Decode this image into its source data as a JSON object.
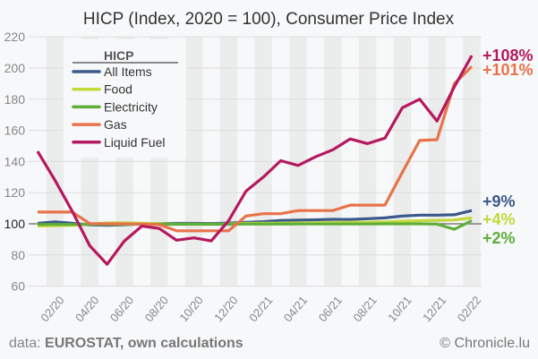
{
  "chart_data": {
    "type": "line",
    "title": "HICP (Index, 2020 = 100), Consumer Price Index",
    "xlabel": "",
    "ylabel": "",
    "ylim": [
      60,
      220
    ],
    "yticks": [
      60,
      80,
      100,
      120,
      140,
      160,
      180,
      200,
      220
    ],
    "grid": true,
    "x": [
      "01/20",
      "02/20",
      "03/20",
      "04/20",
      "05/20",
      "06/20",
      "07/20",
      "08/20",
      "09/20",
      "10/20",
      "11/20",
      "12/20",
      "01/21",
      "02/21",
      "03/21",
      "04/21",
      "05/21",
      "06/21",
      "07/21",
      "08/21",
      "09/21",
      "10/21",
      "11/21",
      "12/21",
      "01/22",
      "02/22"
    ],
    "xtick_labels": [
      "02/20",
      "04/20",
      "06/20",
      "08/20",
      "10/20",
      "12/20",
      "02/21",
      "04/21",
      "06/21",
      "08/21",
      "10/21",
      "12/21",
      "02/22"
    ],
    "legend_title": "HICP",
    "legend_position": "top-left",
    "series": [
      {
        "name": "All Items",
        "color": "#3b5a8a",
        "end_label": "+9%",
        "values": [
          100.3,
          101.2,
          100.4,
          99.3,
          99.0,
          99.4,
          100.0,
          100.2,
          100.3,
          100.3,
          100.2,
          100.5,
          101.0,
          101.4,
          102.2,
          102.4,
          102.6,
          102.9,
          102.8,
          103.3,
          103.8,
          105.0,
          105.6,
          105.6,
          105.8,
          108.5
        ]
      },
      {
        "name": "Food",
        "color": "#c3d93a",
        "end_label": "+4%",
        "values": [
          98.6,
          98.8,
          99.0,
          99.8,
          100.6,
          100.6,
          100.4,
          100.2,
          99.8,
          99.8,
          99.7,
          100.0,
          100.3,
          100.4,
          100.4,
          100.5,
          100.7,
          100.8,
          100.9,
          101.0,
          101.2,
          101.6,
          102.0,
          102.2,
          102.5,
          103.8
        ]
      },
      {
        "name": "Electricity",
        "color": "#5fae3a",
        "end_label": "+2%",
        "values": [
          99.6,
          99.6,
          99.6,
          99.6,
          99.6,
          99.7,
          99.7,
          99.7,
          99.7,
          99.7,
          99.7,
          99.7,
          99.8,
          99.8,
          99.8,
          99.9,
          99.9,
          99.9,
          99.9,
          99.9,
          100.0,
          100.0,
          100.0,
          99.8,
          96.5,
          102.0
        ]
      },
      {
        "name": "Gas",
        "color": "#e8734a",
        "end_label": "+101%",
        "values": [
          107.5,
          107.5,
          107.5,
          100.2,
          100.0,
          100.0,
          99.8,
          99.5,
          95.5,
          95.5,
          95.5,
          95.5,
          105.0,
          106.5,
          106.5,
          108.5,
          108.5,
          108.5,
          112.0,
          112.0,
          112.0,
          133.0,
          153.5,
          154.0,
          190.0,
          201.0
        ]
      },
      {
        "name": "Liquid Fuel",
        "color": "#b5195e",
        "end_label": "+108%",
        "values": [
          146.5,
          128.0,
          108.0,
          86.0,
          74.0,
          89.0,
          98.5,
          97.0,
          89.5,
          91.0,
          89.0,
          102.0,
          121.0,
          130.0,
          140.5,
          137.5,
          143.0,
          147.5,
          154.5,
          151.5,
          155.0,
          174.5,
          180.0,
          166.0,
          188.0,
          208.0
        ]
      }
    ]
  },
  "footer": {
    "source_prefix": "data: ",
    "source_bold": "EUROSTAT, own calculations",
    "copyright": "© Chronicle.lu"
  }
}
